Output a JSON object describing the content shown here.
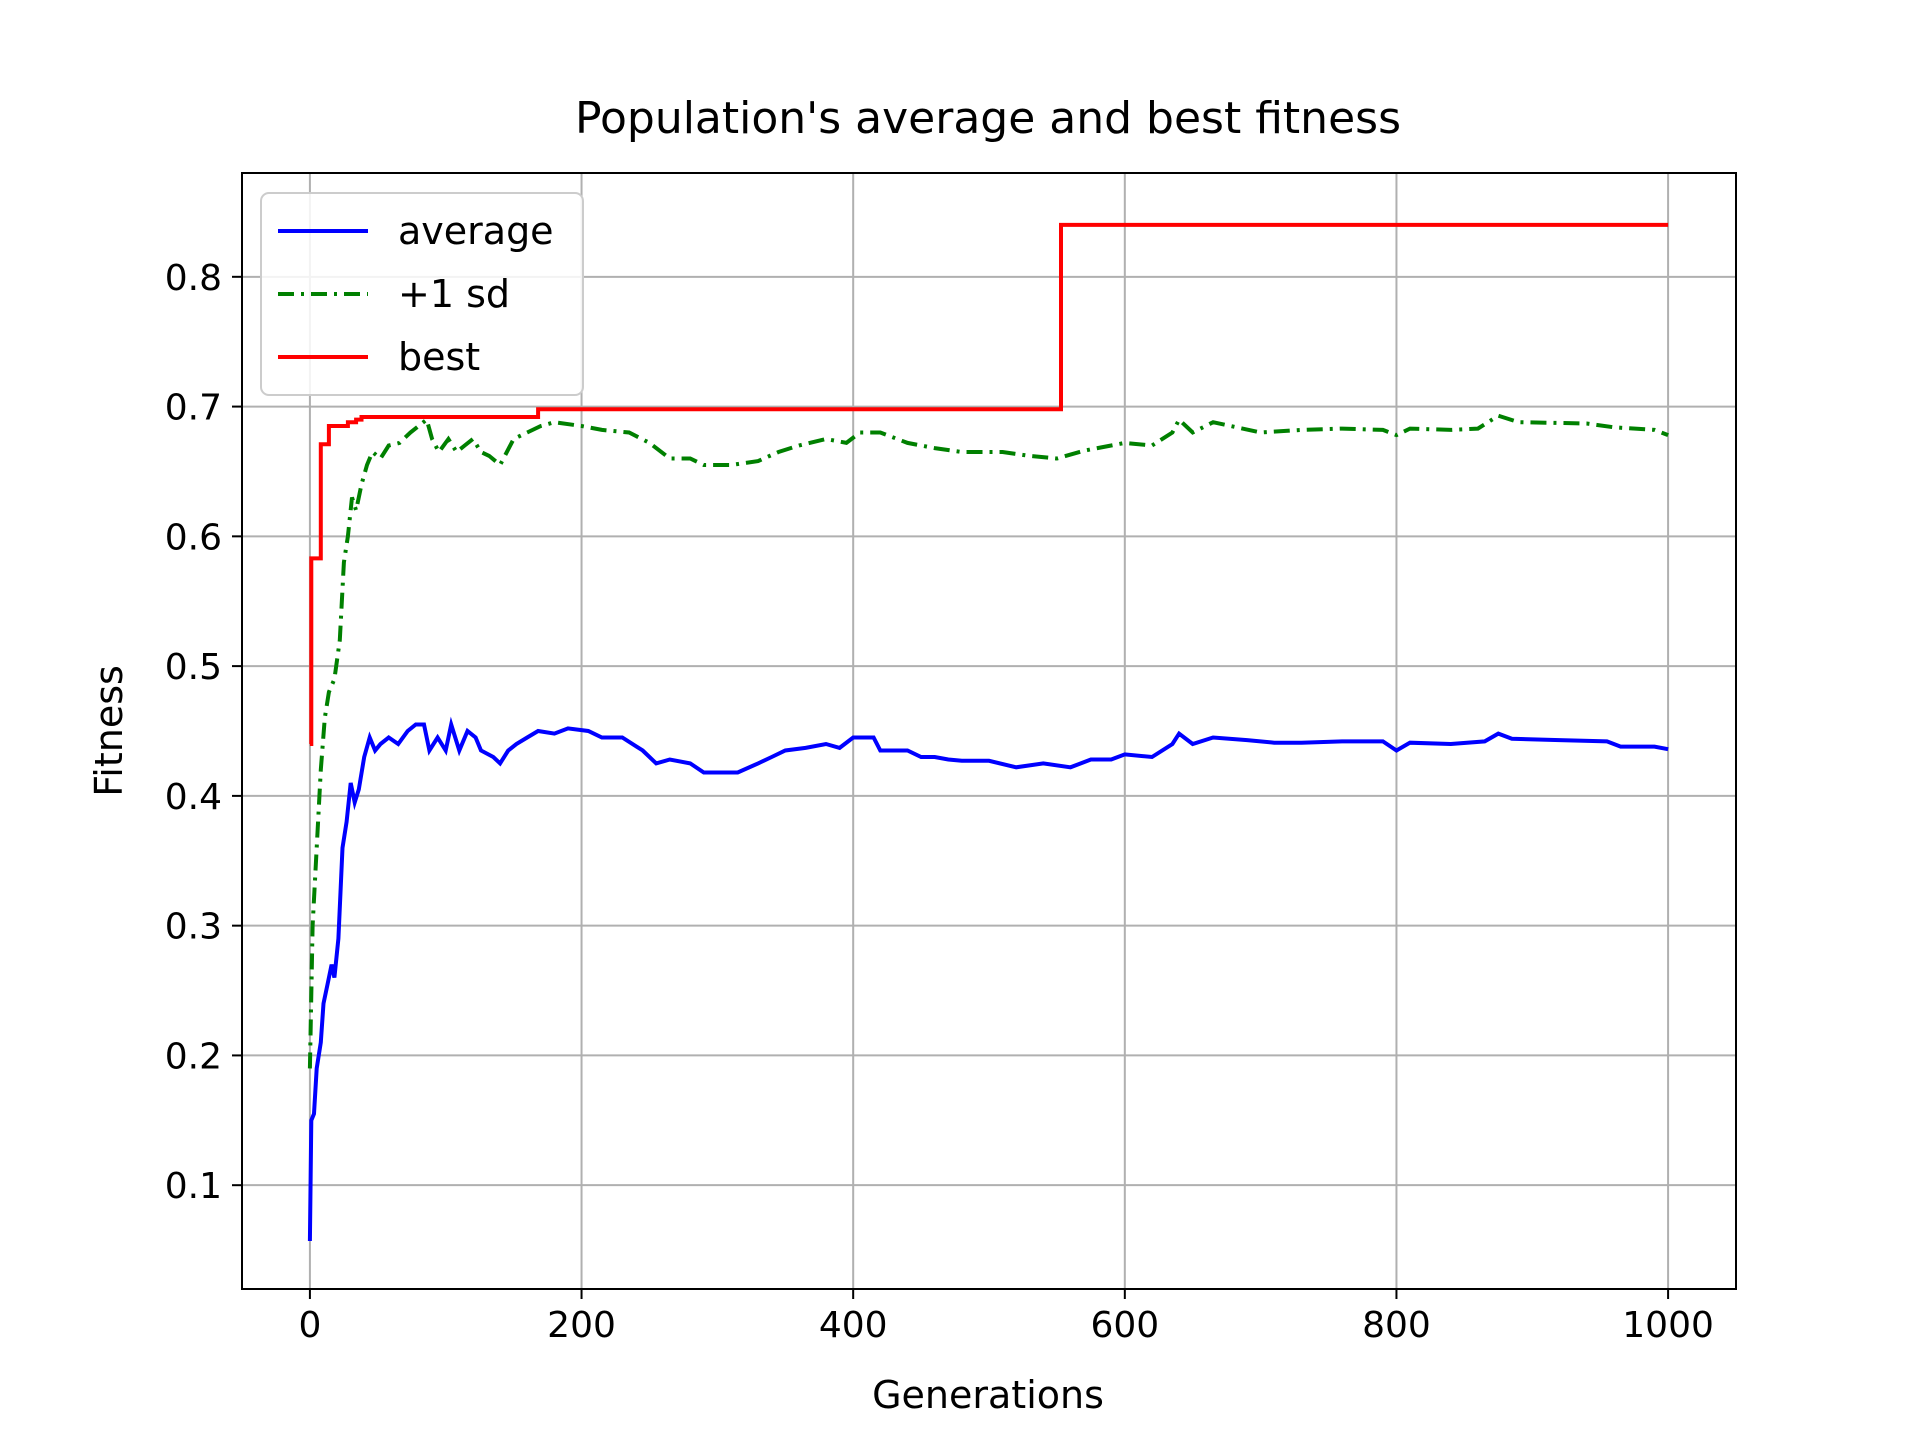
{
  "chart_data": {
    "type": "line",
    "title": "Population's average and best fitness",
    "xlabel": "Generations",
    "ylabel": "Fitness",
    "xlim": [
      -50,
      1050
    ],
    "ylim": [
      0.02,
      0.88
    ],
    "x_ticks": [
      0,
      200,
      400,
      600,
      800,
      1000
    ],
    "y_ticks": [
      0.1,
      0.2,
      0.3,
      0.4,
      0.5,
      0.6,
      0.7,
      0.8
    ],
    "grid": true,
    "legend_position": "upper-left",
    "series": [
      {
        "name": "average",
        "color": "#0000ff",
        "style": "solid",
        "step": false,
        "points": [
          [
            0,
            0.057
          ],
          [
            1,
            0.15
          ],
          [
            3,
            0.155
          ],
          [
            5,
            0.19
          ],
          [
            8,
            0.21
          ],
          [
            10,
            0.24
          ],
          [
            13,
            0.255
          ],
          [
            16,
            0.27
          ],
          [
            18,
            0.26
          ],
          [
            21,
            0.29
          ],
          [
            24,
            0.36
          ],
          [
            27,
            0.38
          ],
          [
            30,
            0.41
          ],
          [
            33,
            0.395
          ],
          [
            36,
            0.405
          ],
          [
            40,
            0.43
          ],
          [
            44,
            0.445
          ],
          [
            48,
            0.435
          ],
          [
            52,
            0.44
          ],
          [
            58,
            0.445
          ],
          [
            65,
            0.44
          ],
          [
            72,
            0.45
          ],
          [
            78,
            0.455
          ],
          [
            84,
            0.455
          ],
          [
            88,
            0.435
          ],
          [
            94,
            0.445
          ],
          [
            100,
            0.435
          ],
          [
            104,
            0.455
          ],
          [
            110,
            0.435
          ],
          [
            116,
            0.45
          ],
          [
            122,
            0.445
          ],
          [
            126,
            0.435
          ],
          [
            135,
            0.43
          ],
          [
            140,
            0.425
          ],
          [
            146,
            0.435
          ],
          [
            152,
            0.44
          ],
          [
            160,
            0.445
          ],
          [
            168,
            0.45
          ],
          [
            180,
            0.448
          ],
          [
            190,
            0.452
          ],
          [
            205,
            0.45
          ],
          [
            215,
            0.445
          ],
          [
            230,
            0.445
          ],
          [
            245,
            0.435
          ],
          [
            255,
            0.425
          ],
          [
            265,
            0.428
          ],
          [
            280,
            0.425
          ],
          [
            290,
            0.418
          ],
          [
            300,
            0.418
          ],
          [
            315,
            0.418
          ],
          [
            330,
            0.425
          ],
          [
            340,
            0.43
          ],
          [
            350,
            0.435
          ],
          [
            365,
            0.437
          ],
          [
            380,
            0.44
          ],
          [
            390,
            0.437
          ],
          [
            400,
            0.445
          ],
          [
            415,
            0.445
          ],
          [
            420,
            0.435
          ],
          [
            440,
            0.435
          ],
          [
            450,
            0.43
          ],
          [
            460,
            0.43
          ],
          [
            470,
            0.428
          ],
          [
            480,
            0.427
          ],
          [
            500,
            0.427
          ],
          [
            520,
            0.422
          ],
          [
            540,
            0.425
          ],
          [
            560,
            0.422
          ],
          [
            575,
            0.428
          ],
          [
            590,
            0.428
          ],
          [
            600,
            0.432
          ],
          [
            620,
            0.43
          ],
          [
            635,
            0.44
          ],
          [
            640,
            0.448
          ],
          [
            650,
            0.44
          ],
          [
            665,
            0.445
          ],
          [
            690,
            0.443
          ],
          [
            710,
            0.441
          ],
          [
            730,
            0.441
          ],
          [
            760,
            0.442
          ],
          [
            790,
            0.442
          ],
          [
            800,
            0.435
          ],
          [
            810,
            0.441
          ],
          [
            840,
            0.44
          ],
          [
            865,
            0.442
          ],
          [
            875,
            0.448
          ],
          [
            885,
            0.444
          ],
          [
            920,
            0.443
          ],
          [
            955,
            0.442
          ],
          [
            965,
            0.438
          ],
          [
            990,
            0.438
          ],
          [
            1000,
            0.436
          ]
        ]
      },
      {
        "name": "+1 sd",
        "color": "#008000",
        "style": "dashdot",
        "step": false,
        "points": [
          [
            0,
            0.19
          ],
          [
            2,
            0.3
          ],
          [
            5,
            0.36
          ],
          [
            8,
            0.42
          ],
          [
            11,
            0.46
          ],
          [
            14,
            0.48
          ],
          [
            18,
            0.49
          ],
          [
            22,
            0.52
          ],
          [
            25,
            0.58
          ],
          [
            28,
            0.6
          ],
          [
            31,
            0.63
          ],
          [
            34,
            0.62
          ],
          [
            38,
            0.64
          ],
          [
            42,
            0.655
          ],
          [
            46,
            0.665
          ],
          [
            52,
            0.66
          ],
          [
            58,
            0.67
          ],
          [
            66,
            0.672
          ],
          [
            74,
            0.68
          ],
          [
            80,
            0.685
          ],
          [
            86,
            0.69
          ],
          [
            90,
            0.675
          ],
          [
            95,
            0.665
          ],
          [
            102,
            0.675
          ],
          [
            108,
            0.665
          ],
          [
            114,
            0.67
          ],
          [
            120,
            0.675
          ],
          [
            126,
            0.665
          ],
          [
            132,
            0.662
          ],
          [
            140,
            0.655
          ],
          [
            150,
            0.675
          ],
          [
            160,
            0.68
          ],
          [
            170,
            0.685
          ],
          [
            180,
            0.688
          ],
          [
            200,
            0.685
          ],
          [
            215,
            0.682
          ],
          [
            235,
            0.68
          ],
          [
            250,
            0.672
          ],
          [
            265,
            0.66
          ],
          [
            280,
            0.66
          ],
          [
            290,
            0.655
          ],
          [
            310,
            0.655
          ],
          [
            330,
            0.658
          ],
          [
            345,
            0.665
          ],
          [
            360,
            0.67
          ],
          [
            380,
            0.675
          ],
          [
            395,
            0.672
          ],
          [
            405,
            0.68
          ],
          [
            420,
            0.68
          ],
          [
            440,
            0.672
          ],
          [
            460,
            0.668
          ],
          [
            480,
            0.665
          ],
          [
            510,
            0.665
          ],
          [
            530,
            0.662
          ],
          [
            550,
            0.66
          ],
          [
            570,
            0.666
          ],
          [
            600,
            0.672
          ],
          [
            620,
            0.67
          ],
          [
            635,
            0.68
          ],
          [
            640,
            0.69
          ],
          [
            650,
            0.68
          ],
          [
            665,
            0.688
          ],
          [
            700,
            0.68
          ],
          [
            730,
            0.682
          ],
          [
            760,
            0.683
          ],
          [
            790,
            0.682
          ],
          [
            800,
            0.678
          ],
          [
            810,
            0.683
          ],
          [
            840,
            0.682
          ],
          [
            860,
            0.683
          ],
          [
            875,
            0.693
          ],
          [
            890,
            0.688
          ],
          [
            940,
            0.687
          ],
          [
            960,
            0.684
          ],
          [
            990,
            0.682
          ],
          [
            1000,
            0.678
          ]
        ]
      },
      {
        "name": "best",
        "color": "#ff0000",
        "style": "solid",
        "step": true,
        "points": [
          [
            0,
            0.44
          ],
          [
            1,
            0.583
          ],
          [
            8,
            0.671
          ],
          [
            14,
            0.685
          ],
          [
            28,
            0.688
          ],
          [
            34,
            0.69
          ],
          [
            38,
            0.692
          ],
          [
            168,
            0.698
          ],
          [
            553,
            0.84
          ],
          [
            1000,
            0.84
          ]
        ]
      }
    ]
  }
}
